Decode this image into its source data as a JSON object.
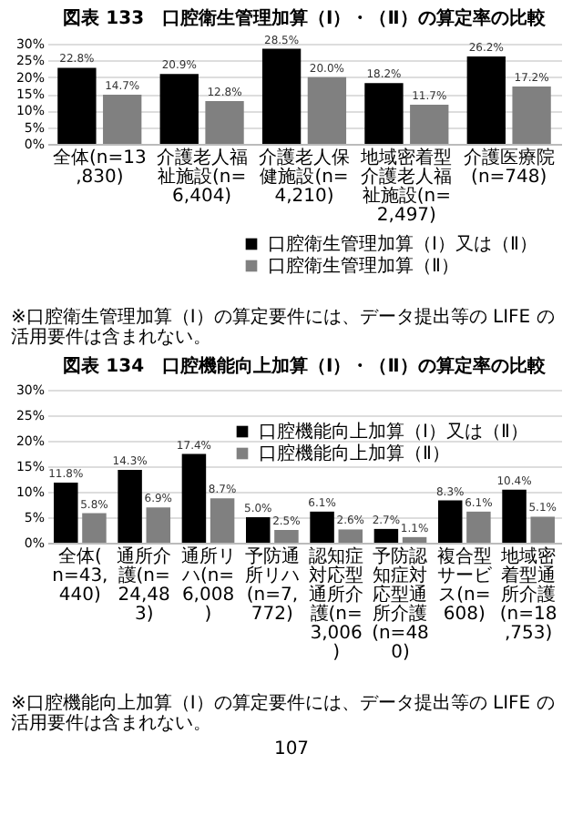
{
  "chart_data": [
    {
      "type": "bar",
      "title": "図表 133　口腔衛生管理加算（Ⅰ）・（Ⅱ）の算定率の比較",
      "categories": [
        "全体(n=13,830)",
        "介護老人福祉施設(n=6,404)",
        "介護老人保健施設(n=4,210)",
        "地域密着型介護老人福祉施設(n=2,497)",
        "介護医療院(n=748)"
      ],
      "series": [
        {
          "name": "口腔衛生管理加算（Ⅰ）又は（Ⅱ）",
          "color": "#000000",
          "values": [
            22.8,
            20.9,
            28.5,
            18.2,
            26.2
          ],
          "value_labels": [
            "22.8%",
            "20.9%",
            "28.5%",
            "18.2%",
            "26.2%"
          ]
        },
        {
          "name": "口腔衛生管理加算（Ⅱ）",
          "color": "#808080",
          "values": [
            14.7,
            12.8,
            20.0,
            11.7,
            17.2
          ],
          "value_labels": [
            "14.7%",
            "12.8%",
            "20.0%",
            "11.7%",
            "17.2%"
          ]
        }
      ],
      "ylim": [
        0,
        30
      ],
      "yticks": [
        {
          "value": 0,
          "label": "0%"
        },
        {
          "value": 5,
          "label": "5%"
        },
        {
          "value": 10,
          "label": "10%"
        },
        {
          "value": 15,
          "label": "15%"
        },
        {
          "value": 20,
          "label": "20%"
        },
        {
          "value": 25,
          "label": "25%"
        },
        {
          "value": 30,
          "label": "30%"
        }
      ],
      "grid": "y",
      "legend": "bottom right",
      "annotations": [
        "※口腔衛生管理加算（Ⅰ）の算定要件には、データ提出等の LIFE の活用要件は含まれない。"
      ]
    },
    {
      "type": "bar",
      "title": "図表 134　口腔機能向上加算（Ⅰ）・（Ⅱ）の算定率の比較",
      "categories": [
        "全体(n=43,440)",
        "通所介護(n=24,483)",
        "通所リハ(n=6,008)",
        "予防通所リハ(n=7,772)",
        "認知症対応型通所介護(n=3,006)",
        "予防認知症対応型通所介護(n=480)",
        "複合型サービス(n=608)",
        "地域密着型通所介護(n=18,753)"
      ],
      "series": [
        {
          "name": "口腔機能向上加算（Ⅰ）又は（Ⅱ）",
          "color": "#000000",
          "values": [
            11.8,
            14.3,
            17.4,
            5.0,
            6.1,
            2.7,
            8.3,
            10.4
          ],
          "value_labels": [
            "11.8%",
            "14.3%",
            "17.4%",
            "5.0%",
            "6.1%",
            "2.7%",
            "8.3%",
            "10.4%"
          ]
        },
        {
          "name": "口腔機能向上加算（Ⅱ）",
          "color": "#808080",
          "values": [
            5.8,
            6.9,
            8.7,
            2.5,
            2.6,
            1.1,
            6.1,
            5.1
          ],
          "value_labels": [
            "5.8%",
            "6.9%",
            "8.7%",
            "2.5%",
            "2.6%",
            "1.1%",
            "6.1%",
            "5.1%"
          ]
        }
      ],
      "ylim": [
        0,
        30
      ],
      "yticks": [
        {
          "value": 0,
          "label": "0%"
        },
        {
          "value": 5,
          "label": "5%"
        },
        {
          "value": 10,
          "label": "10%"
        },
        {
          "value": 15,
          "label": "15%"
        },
        {
          "value": 20,
          "label": "20%"
        },
        {
          "value": 25,
          "label": "25%"
        },
        {
          "value": 30,
          "label": "30%"
        }
      ],
      "grid": "y",
      "legend": "top right",
      "annotations": [
        "※口腔機能向上加算（Ⅰ）の算定要件には、データ提出等の LIFE の活用要件は含まれない。",
        "107"
      ]
    }
  ]
}
